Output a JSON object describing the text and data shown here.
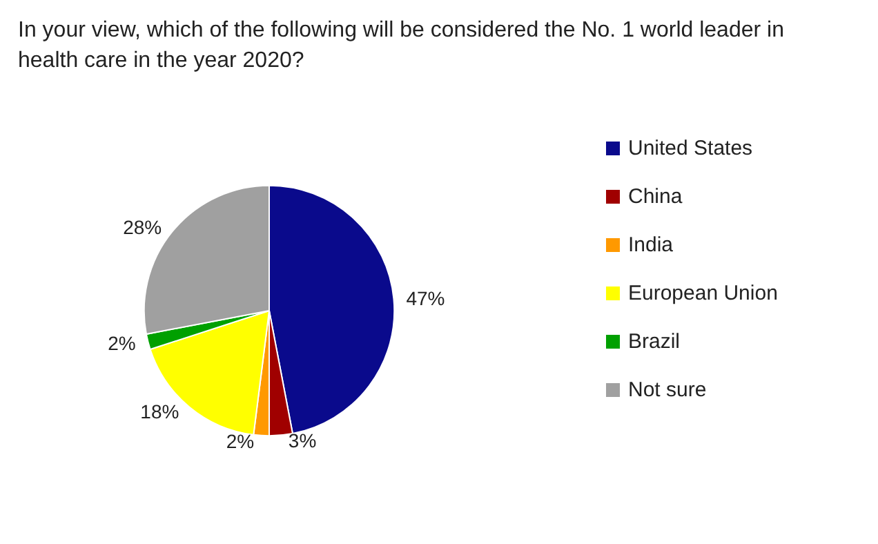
{
  "chart_data": {
    "type": "pie",
    "title": "In your view, which of the following will be considered the No. 1 world leader in health care in the year 2020?",
    "categories": [
      "United States",
      "China",
      "India",
      "European Union",
      "Brazil",
      "Not sure"
    ],
    "values": [
      47,
      3,
      2,
      18,
      2,
      28
    ],
    "value_labels": [
      "47%",
      "3%",
      "2%",
      "18%",
      "2%",
      "28%"
    ],
    "colors": [
      "#0a0a8c",
      "#a00000",
      "#ff9900",
      "#ffff00",
      "#00a000",
      "#a0a0a0"
    ],
    "legend": "right"
  }
}
